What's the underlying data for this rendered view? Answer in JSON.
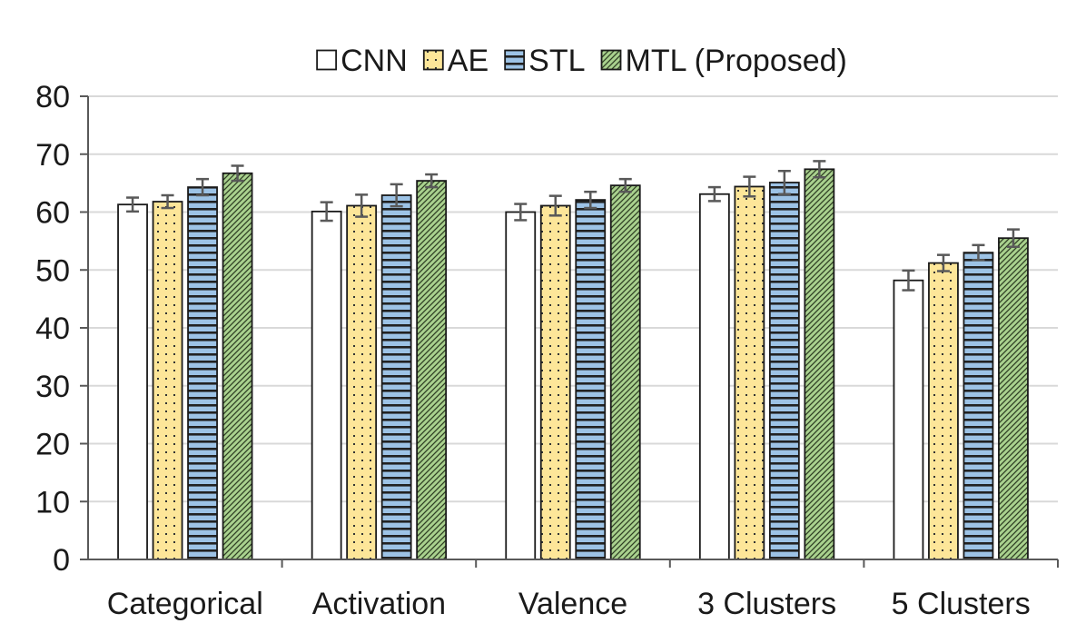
{
  "chart_data": {
    "type": "bar",
    "categories": [
      "Categorical",
      "Activation",
      "Valence",
      "3 Clusters",
      "5 Clusters"
    ],
    "series": [
      {
        "name": "CNN",
        "values": [
          61.3,
          60.1,
          60.0,
          63.1,
          48.2
        ],
        "errors": [
          1.2,
          1.6,
          1.4,
          1.2,
          1.7
        ],
        "fill": "#ffffff",
        "pattern": "none"
      },
      {
        "name": "AE",
        "values": [
          61.8,
          61.1,
          61.1,
          64.4,
          51.2
        ],
        "errors": [
          1.1,
          1.9,
          1.7,
          1.7,
          1.4
        ],
        "fill": "#fde699",
        "pattern": "dots"
      },
      {
        "name": "STL",
        "values": [
          64.3,
          62.9,
          62.1,
          65.1,
          53.0
        ],
        "errors": [
          1.4,
          1.9,
          1.4,
          2.0,
          1.3
        ],
        "fill": "#9dc3e6",
        "pattern": "horizontal-lines"
      },
      {
        "name": "MTL (Proposed)",
        "values": [
          66.7,
          65.4,
          64.6,
          67.4,
          55.5
        ],
        "errors": [
          1.3,
          1.1,
          1.1,
          1.4,
          1.5
        ],
        "fill": "#a9d18e",
        "pattern": "diagonal-hatch"
      }
    ],
    "ylim": [
      0,
      80
    ],
    "yticks": [
      0,
      10,
      20,
      30,
      40,
      50,
      60,
      70,
      80
    ],
    "grid": true,
    "legend_position": "top",
    "colors": {
      "grid": "#d9d9d9",
      "axis": "#595959",
      "bar_outline": "#1a1a1a",
      "error_bar": "#595959",
      "text": "#1a1a1a"
    }
  }
}
